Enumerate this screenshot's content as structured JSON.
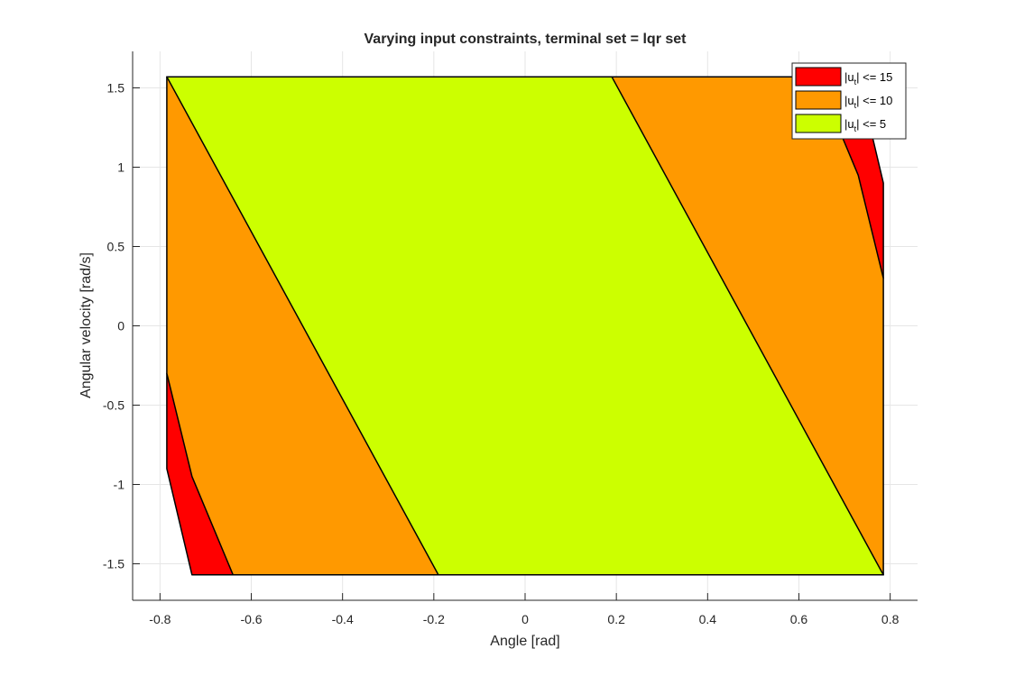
{
  "chart_data": {
    "type": "area",
    "title": "Varying input constraints,  terminal set = lqr set",
    "xlabel": "Angle [rad]",
    "ylabel": "Angular velocity [rad/s]",
    "xlim": [
      -0.86,
      0.86
    ],
    "ylim": [
      -1.73,
      1.73
    ],
    "x_ticks": [
      -0.8,
      -0.6,
      -0.4,
      -0.2,
      0,
      0.2,
      0.4,
      0.6,
      0.8
    ],
    "x_tick_labels": [
      "-0.8",
      "-0.6",
      "-0.4",
      "-0.2",
      "0",
      "0.2",
      "0.4",
      "0.6",
      "0.8"
    ],
    "y_ticks": [
      1.5,
      1,
      0.5,
      0,
      -0.5,
      -1,
      -1.5
    ],
    "y_tick_labels": [
      "1.5",
      "1",
      "0.5",
      "0",
      "-0.5",
      "-1",
      "-1.5"
    ],
    "grid": true,
    "legend_position": "top-right",
    "series": [
      {
        "name": "|u_t| <= 15",
        "legend_main": "|u",
        "legend_sub": "t",
        "legend_rest": "| <= 15",
        "color": "#ff0000",
        "polygon": [
          [
            -0.785,
            1.57
          ],
          [
            0.785,
            1.57
          ],
          [
            0.785,
            0.9
          ],
          [
            0.73,
            -0.95
          ],
          [
            0.64,
            -1.57
          ],
          [
            -0.785,
            -1.57
          ],
          [
            -0.785,
            -0.9
          ],
          [
            -0.73,
            0.95
          ],
          [
            -0.64,
            1.57
          ]
        ]
      },
      {
        "name": "|u_t| <= 10",
        "legend_main": "|u",
        "legend_sub": "t",
        "legend_rest": "| <= 10",
        "color": "#ff9900",
        "polygon": [
          [
            -0.785,
            1.57
          ],
          [
            0.785,
            1.57
          ],
          [
            0.785,
            0.3
          ],
          [
            0.785,
            -1.57
          ],
          [
            -0.785,
            -1.57
          ],
          [
            -0.785,
            -0.3
          ],
          [
            -0.785,
            1.57
          ]
        ]
      },
      {
        "name": "|u_t| <=  5",
        "legend_main": "|u",
        "legend_sub": "t",
        "legend_rest": "| <=  5",
        "color": "#ccff00",
        "polygon": [
          [
            -0.785,
            1.57
          ],
          [
            0.19,
            1.57
          ],
          [
            0.785,
            -1.57
          ],
          [
            -0.19,
            -1.57
          ],
          [
            -0.785,
            1.57
          ]
        ]
      }
    ],
    "red_left_polygon": [
      [
        -0.785,
        -0.3
      ],
      [
        -0.785,
        -0.9
      ],
      [
        -0.73,
        -1.57
      ],
      [
        -0.64,
        -1.57
      ]
    ],
    "red_right_polygon": [
      [
        0.785,
        0.3
      ],
      [
        0.785,
        0.9
      ],
      [
        0.73,
        1.57
      ],
      [
        0.64,
        1.57
      ]
    ],
    "orange_polygon": [
      [
        -0.785,
        1.57
      ],
      [
        0.785,
        1.57
      ],
      [
        0.785,
        -1.57
      ],
      [
        -0.785,
        -1.57
      ]
    ],
    "green_polygon": [
      [
        -0.785,
        1.57
      ],
      [
        0.19,
        1.57
      ],
      [
        0.785,
        -1.57
      ],
      [
        -0.19,
        -1.57
      ]
    ]
  }
}
